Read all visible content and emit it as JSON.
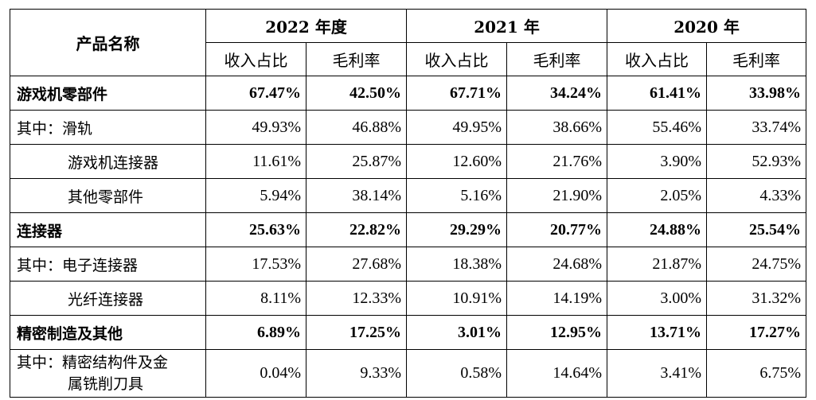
{
  "header": {
    "product_label": "产品名称",
    "years": [
      {
        "label": "2022 年度",
        "cols": [
          "收入占比",
          "毛利率"
        ]
      },
      {
        "label": "2021 年",
        "cols": [
          "收入占比",
          "毛利率"
        ]
      },
      {
        "label": "2020 年",
        "cols": [
          "收入占比",
          "毛利率"
        ]
      }
    ]
  },
  "rows": [
    {
      "name": "游戏机零部件",
      "style": "bold",
      "values": [
        "67.47%",
        "42.50%",
        "67.71%",
        "34.24%",
        "61.41%",
        "33.98%"
      ]
    },
    {
      "name": "其中：滑轨",
      "style": "normal",
      "values": [
        "49.93%",
        "46.88%",
        "49.95%",
        "38.66%",
        "55.46%",
        "33.74%"
      ]
    },
    {
      "name": "游戏机连接器",
      "style": "indent",
      "values": [
        "11.61%",
        "25.87%",
        "12.60%",
        "21.76%",
        "3.90%",
        "52.93%"
      ]
    },
    {
      "name": "其他零部件",
      "style": "indent",
      "values": [
        "5.94%",
        "38.14%",
        "5.16%",
        "21.90%",
        "2.05%",
        "4.33%"
      ]
    },
    {
      "name": "连接器",
      "style": "bold",
      "values": [
        "25.63%",
        "22.82%",
        "29.29%",
        "20.77%",
        "24.88%",
        "25.54%"
      ]
    },
    {
      "name": "其中：电子连接器",
      "style": "normal",
      "values": [
        "17.53%",
        "27.68%",
        "18.38%",
        "24.68%",
        "21.87%",
        "24.75%"
      ]
    },
    {
      "name": "光纤连接器",
      "style": "indent",
      "values": [
        "8.11%",
        "12.33%",
        "10.91%",
        "14.19%",
        "3.00%",
        "31.32%"
      ]
    },
    {
      "name": "精密制造及其他",
      "style": "bold",
      "values": [
        "6.89%",
        "17.25%",
        "3.01%",
        "12.95%",
        "13.71%",
        "17.27%"
      ]
    },
    {
      "name": "其中：精密结构件及金",
      "name2": "属铣削刀具",
      "style": "wrap",
      "values": [
        "0.04%",
        "9.33%",
        "0.58%",
        "14.64%",
        "3.41%",
        "6.75%"
      ]
    }
  ]
}
